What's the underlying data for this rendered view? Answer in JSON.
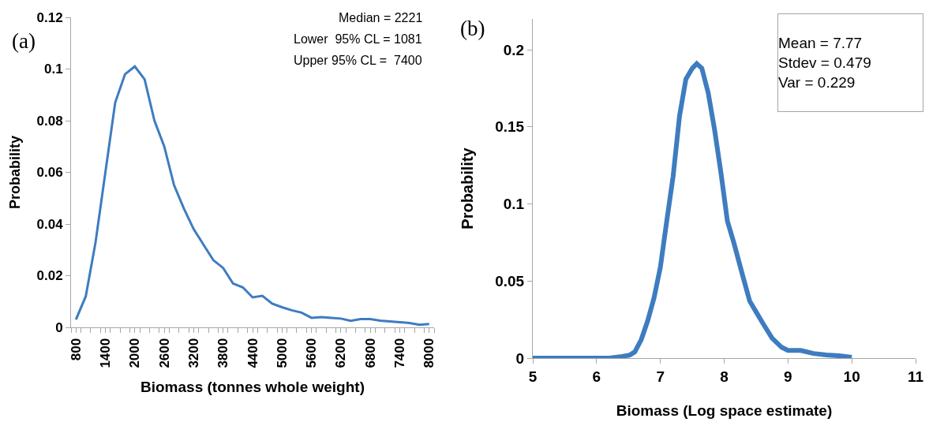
{
  "chart_data": [
    {
      "type": "line",
      "title": "(a)",
      "xlabel": "Biomass (tonnes whole weight)",
      "ylabel": "Probability",
      "annotations": [
        "Median = 2221",
        "Lower  95% CL = 1081",
        "Upper 95% CL =  7400"
      ],
      "x": [
        800,
        1000,
        1200,
        1400,
        1600,
        1800,
        2000,
        2200,
        2400,
        2600,
        2800,
        3000,
        3200,
        3400,
        3600,
        3800,
        4000,
        4200,
        4400,
        4600,
        4800,
        5000,
        5200,
        5400,
        5600,
        5800,
        6000,
        6200,
        6400,
        6600,
        6800,
        7000,
        7200,
        7400,
        7600,
        7800,
        8000
      ],
      "series": [
        {
          "color": "#3e7cc0",
          "values": [
            0.003,
            0.012,
            0.033,
            0.06,
            0.087,
            0.098,
            0.101,
            0.096,
            0.08,
            0.07,
            0.055,
            0.046,
            0.038,
            0.032,
            0.026,
            0.023,
            0.017,
            0.0155,
            0.0116,
            0.0122,
            0.0092,
            0.0078,
            0.0066,
            0.0057,
            0.0037,
            0.004,
            0.0037,
            0.0034,
            0.0025,
            0.0032,
            0.0032,
            0.0026,
            0.0023,
            0.002,
            0.0017,
            0.001,
            0.0013
          ]
        }
      ],
      "xlim": [
        700,
        8100
      ],
      "xticks": [
        800,
        1400,
        2000,
        2600,
        3200,
        3800,
        4400,
        5000,
        5600,
        6200,
        6800,
        7400,
        8000,
        {
          "value": 700,
          "label": null
        },
        {
          "value": 900,
          "label": null
        },
        {
          "value": 1100,
          "label": null
        },
        {
          "value": 1300,
          "label": null
        },
        {
          "value": 1500,
          "label": null
        },
        {
          "value": 1700,
          "label": null
        },
        {
          "value": 1900,
          "label": null
        },
        {
          "value": 2100,
          "label": null
        },
        {
          "value": 2300,
          "label": null
        },
        {
          "value": 2500,
          "label": null
        },
        {
          "value": 2700,
          "label": null
        },
        {
          "value": 2900,
          "label": null
        },
        {
          "value": 3100,
          "label": null
        },
        {
          "value": 3300,
          "label": null
        },
        {
          "value": 3500,
          "label": null
        },
        {
          "value": 3700,
          "label": null
        },
        {
          "value": 3900,
          "label": null
        },
        {
          "value": 4100,
          "label": null
        },
        {
          "value": 4300,
          "label": null
        },
        {
          "value": 4500,
          "label": null
        },
        {
          "value": 4700,
          "label": null
        },
        {
          "value": 4900,
          "label": null
        },
        {
          "value": 5100,
          "label": null
        },
        {
          "value": 5300,
          "label": null
        },
        {
          "value": 5500,
          "label": null
        },
        {
          "value": 5700,
          "label": null
        },
        {
          "value": 5900,
          "label": null
        },
        {
          "value": 6100,
          "label": null
        },
        {
          "value": 6300,
          "label": null
        },
        {
          "value": 6500,
          "label": null
        },
        {
          "value": 6700,
          "label": null
        },
        {
          "value": 6900,
          "label": null
        },
        {
          "value": 7100,
          "label": null
        },
        {
          "value": 7300,
          "label": null
        },
        {
          "value": 7500,
          "label": null
        },
        {
          "value": 7700,
          "label": null
        },
        {
          "value": 7900,
          "label": null
        },
        {
          "value": 8100,
          "label": null
        }
      ],
      "ylim": [
        0,
        0.12
      ],
      "yticks": [
        0,
        0.02,
        0.04,
        0.06,
        0.08,
        0.1,
        0.12
      ],
      "grid": false,
      "marker": "none",
      "line_style": "solid"
    },
    {
      "type": "line",
      "title": "(b)",
      "xlabel": "Biomass (Log space estimate)",
      "ylabel": "Probability",
      "annotations": [
        "Mean = 7.77",
        "Stdev = 0.479",
        "Var = 0.229"
      ],
      "x": [
        5,
        5.5,
        6,
        6.2,
        6.4,
        6.52,
        6.6,
        6.7,
        6.8,
        6.9,
        7,
        7.1,
        7.2,
        7.3,
        7.4,
        7.5,
        7.57,
        7.65,
        7.75,
        7.85,
        7.95,
        8.05,
        8.15,
        8.3,
        8.4,
        8.5,
        8.6,
        8.75,
        8.9,
        9,
        9.2,
        9.4,
        9.6,
        9.8,
        10
      ],
      "series": [
        {
          "color": "#3e7cc0",
          "values": [
            0,
            0,
            0,
            0,
            0.001,
            0.002,
            0.004,
            0.012,
            0.024,
            0.039,
            0.059,
            0.089,
            0.118,
            0.157,
            0.181,
            0.188,
            0.191,
            0.188,
            0.172,
            0.148,
            0.12,
            0.089,
            0.075,
            0.052,
            0.037,
            0.03,
            0.023,
            0.013,
            0.007,
            0.005,
            0.005,
            0.003,
            0.002,
            0.0015,
            0.0005
          ]
        }
      ],
      "xlim": [
        5,
        11
      ],
      "xticks": [
        5,
        6,
        7,
        8,
        9,
        10,
        11
      ],
      "ylim": [
        0,
        0.22
      ],
      "yticks": [
        0,
        0.05,
        0.1,
        0.15,
        0.2
      ],
      "grid": false,
      "marker": "none",
      "line_style": "solid"
    }
  ]
}
